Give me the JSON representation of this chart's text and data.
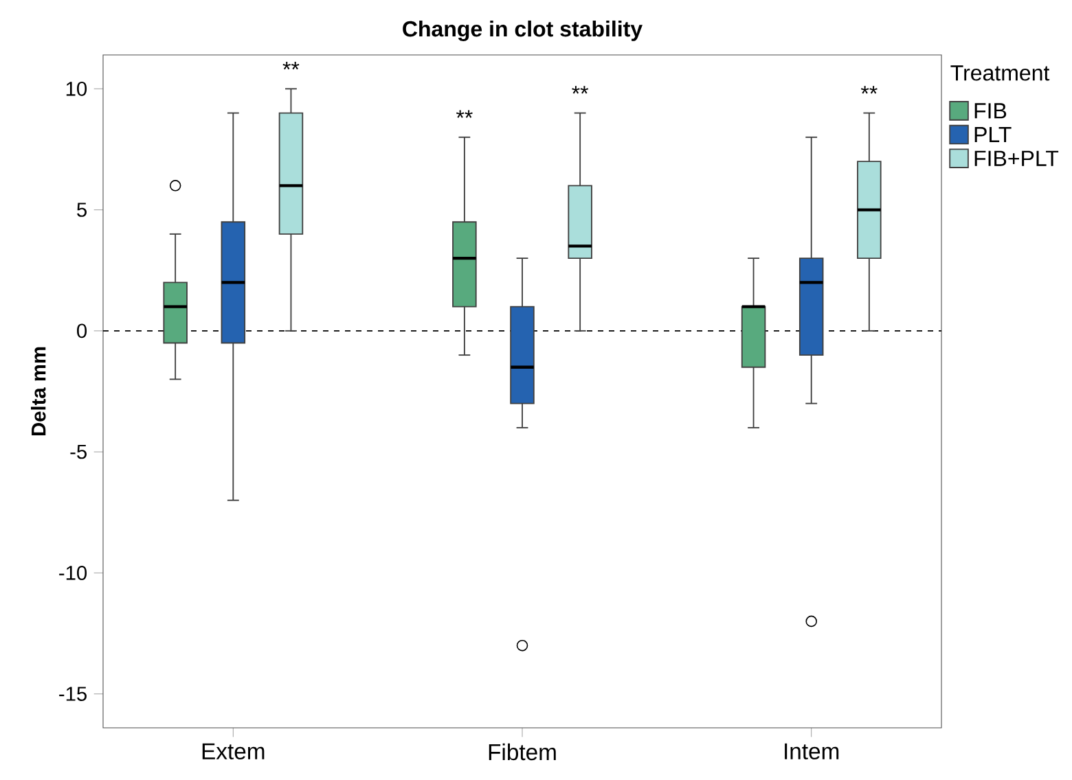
{
  "chart_data": {
    "type": "box",
    "title": "Change in clot stability",
    "ylabel": "Delta mm",
    "legend_title": "Treatment",
    "legend": "right",
    "categories": [
      "Extem",
      "Fibtem",
      "Intem"
    ],
    "ylim": [
      -16.4,
      11.4
    ],
    "yticks": [
      -15,
      -10,
      -5,
      0,
      5,
      10
    ],
    "series": [
      {
        "name": "FIB",
        "color": "#58aa7e",
        "boxes": [
          {
            "low": -2,
            "q1": -0.5,
            "median": 1,
            "q3": 2,
            "high": 4,
            "outliers": [
              6
            ]
          },
          {
            "low": -1,
            "q1": 1,
            "median": 3,
            "q3": 4.5,
            "high": 8
          },
          {
            "low": -4,
            "q1": -1.5,
            "median": 1,
            "q3": 1,
            "high": 3
          }
        ]
      },
      {
        "name": "PLT",
        "color": "#2563b0",
        "boxes": [
          {
            "low": -7,
            "q1": -0.5,
            "median": 2,
            "q3": 4.5,
            "high": 9
          },
          {
            "low": -4,
            "q1": -3,
            "median": -1.5,
            "q3": 1,
            "high": 3,
            "outliers": [
              -13
            ]
          },
          {
            "low": -3,
            "q1": -1,
            "median": 2,
            "q3": 3,
            "high": 8,
            "outliers": [
              -12
            ]
          }
        ]
      },
      {
        "name": "FIB+PLT",
        "color": "#aadedb",
        "boxes": [
          {
            "low": 0,
            "q1": 4,
            "median": 6,
            "q3": 9,
            "high": 10
          },
          {
            "low": 0,
            "q1": 3,
            "median": 3.5,
            "q3": 6,
            "high": 9
          },
          {
            "low": 0,
            "q1": 3,
            "median": 5,
            "q3": 7,
            "high": 9
          }
        ]
      }
    ],
    "ref_lines": [
      {
        "axis": "y",
        "value": 0,
        "line_style": "dashed"
      }
    ],
    "annotations": [
      "**",
      "**",
      "**",
      "**"
    ]
  }
}
